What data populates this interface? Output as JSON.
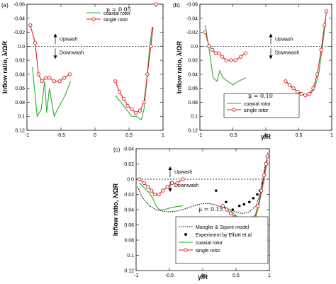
{
  "chart_data": [
    {
      "type": "line",
      "panel_label": "(a)",
      "mu_label": "μ = 0.05",
      "ylabel": "Inflow ratio, λ/ΩR",
      "xlabel": "",
      "xlim": [
        -1,
        1
      ],
      "ylim": [
        -0.06,
        0.12
      ],
      "xticks": [
        "-1",
        "-0.5",
        "0",
        "0.5",
        "1"
      ],
      "xtick_values": [
        -1,
        -0.5,
        0,
        0.5,
        1
      ],
      "yticks": [
        "-0.06",
        "-0.04",
        "-0.02",
        "0.0",
        "0.02",
        "0.04",
        "0.06",
        "0.08",
        "0.1",
        "0.12"
      ],
      "ytick_values": [
        -0.06,
        -0.04,
        -0.02,
        0,
        0.02,
        0.04,
        0.06,
        0.08,
        0.1,
        0.12
      ],
      "legend": {
        "position": "top-right",
        "entries": [
          "coaxial rotor",
          "single rotor"
        ]
      },
      "annotations": {
        "upwash": "Upwash",
        "downwash": "Downwash"
      },
      "series": [
        {
          "name": "coaxial rotor",
          "color": "#2eaa2e",
          "marker": "none",
          "segments": [
            [
              [
                -0.92,
                0.03
              ],
              [
                -0.85,
                0.1
              ],
              [
                -0.79,
                0.09
              ],
              [
                -0.74,
                0.05
              ],
              [
                -0.71,
                0.095
              ],
              [
                -0.67,
                0.06
              ],
              [
                -0.6,
                0.1
              ],
              [
                -0.55,
                0.09
              ],
              [
                -0.44,
                0.07
              ],
              [
                -0.36,
                0.05
              ]
            ],
            [
              [
                0.3,
                0.07
              ],
              [
                0.38,
                0.08
              ],
              [
                0.46,
                0.09
              ],
              [
                0.54,
                0.1
              ],
              [
                0.61,
                0.1
              ],
              [
                0.68,
                0.105
              ],
              [
                0.72,
                0.09
              ],
              [
                0.76,
                0.05
              ],
              [
                0.8,
                0.005
              ],
              [
                0.85,
                -0.035
              ],
              [
                0.89,
                -0.055
              ]
            ]
          ]
        },
        {
          "name": "single rotor",
          "color": "#d82020",
          "marker": "circle",
          "segments": [
            [
              [
                -0.95,
                -0.03
              ],
              [
                -0.88,
                -0.005
              ],
              [
                -0.83,
                0.04
              ],
              [
                -0.78,
                0.05
              ],
              [
                -0.72,
                0.045
              ],
              [
                -0.67,
                0.045
              ],
              [
                -0.6,
                0.05
              ],
              [
                -0.52,
                0.05
              ],
              [
                -0.45,
                0.045
              ],
              [
                -0.37,
                0.04
              ]
            ],
            [
              [
                0.3,
                0.05
              ],
              [
                0.36,
                0.065
              ],
              [
                0.42,
                0.075
              ],
              [
                0.48,
                0.085
              ],
              [
                0.54,
                0.09
              ],
              [
                0.6,
                0.095
              ],
              [
                0.66,
                0.092
              ],
              [
                0.72,
                0.08
              ],
              [
                0.77,
                0.04
              ],
              [
                0.82,
                0.0
              ],
              [
                0.87,
                -0.04
              ],
              [
                0.9,
                -0.06
              ]
            ]
          ]
        }
      ]
    },
    {
      "type": "line",
      "panel_label": "(b)",
      "mu_label": "μ = 0.10",
      "ylabel": "Inflow ratio, λ/ΩR",
      "xlabel": "y/R",
      "xlim": [
        -1,
        1
      ],
      "ylim": [
        -0.06,
        0.12
      ],
      "xticks": [
        "-1",
        "-0.5",
        "0",
        "0.5",
        "1"
      ],
      "xtick_values": [
        -1,
        -0.5,
        0,
        0.5,
        1
      ],
      "yticks": [
        "-0.06",
        "-0.04",
        "-0.02",
        "0.0",
        "0.02",
        "0.04",
        "0.06",
        "0.08",
        "0.1",
        "0.12"
      ],
      "ytick_values": [
        -0.06,
        -0.04,
        -0.02,
        0,
        0.02,
        0.04,
        0.06,
        0.08,
        0.1,
        0.12
      ],
      "legend": {
        "position": "bottom-right",
        "entries": [
          "coaxial rotor",
          "single rotor"
        ]
      },
      "annotations": {
        "upwash": "Upwash",
        "downwash": "Downwash"
      },
      "series": [
        {
          "name": "coaxial rotor",
          "color": "#2eaa2e",
          "marker": "none",
          "segments": [
            [
              [
                -0.92,
                -0.03
              ],
              [
                -0.85,
                0.01
              ],
              [
                -0.8,
                0.045
              ],
              [
                -0.74,
                0.05
              ],
              [
                -0.7,
                0.035
              ],
              [
                -0.65,
                0.045
              ],
              [
                -0.58,
                0.05
              ],
              [
                -0.5,
                0.055
              ],
              [
                -0.42,
                0.05
              ],
              [
                -0.3,
                0.045
              ]
            ],
            [
              [
                0.3,
                0.05
              ],
              [
                0.38,
                0.058
              ],
              [
                0.46,
                0.063
              ],
              [
                0.54,
                0.067
              ],
              [
                0.6,
                0.07
              ],
              [
                0.68,
                0.068
              ],
              [
                0.74,
                0.06
              ],
              [
                0.8,
                0.04
              ],
              [
                0.86,
                0.0
              ],
              [
                0.91,
                -0.04
              ]
            ]
          ]
        },
        {
          "name": "single rotor",
          "color": "#d82020",
          "marker": "circle",
          "segments": [
            [
              [
                -0.92,
                -0.02
              ],
              [
                -0.86,
                0.0
              ],
              [
                -0.81,
                0.005
              ],
              [
                -0.76,
                0.01
              ],
              [
                -0.71,
                0.01
              ],
              [
                -0.66,
                0.015
              ],
              [
                -0.6,
                0.02
              ],
              [
                -0.53,
                0.02
              ],
              [
                -0.46,
                0.02
              ],
              [
                -0.38,
                0.015
              ],
              [
                -0.31,
                0.01
              ]
            ],
            [
              [
                0.3,
                0.05
              ],
              [
                0.36,
                0.055
              ],
              [
                0.42,
                0.06
              ],
              [
                0.48,
                0.065
              ],
              [
                0.54,
                0.068
              ],
              [
                0.6,
                0.07
              ],
              [
                0.66,
                0.068
              ],
              [
                0.72,
                0.06
              ],
              [
                0.78,
                0.04
              ],
              [
                0.84,
                0.005
              ],
              [
                0.89,
                -0.03
              ],
              [
                0.92,
                -0.05
              ]
            ]
          ]
        }
      ]
    },
    {
      "type": "line",
      "panel_label": "(c)",
      "mu_label": "μ = 0.15",
      "ylabel": "Inflow ratio, λ/ΩR",
      "xlabel": "y/R",
      "xlim": [
        -1,
        1
      ],
      "ylim": [
        -0.04,
        0.12
      ],
      "xticks": [
        "-1",
        "-0.5",
        "0",
        "0.5",
        "1"
      ],
      "xtick_values": [
        -1,
        -0.5,
        0,
        0.5,
        1
      ],
      "yticks": [
        "-0.04",
        "-0.02",
        "0.0",
        "0.02",
        "0.04",
        "0.06",
        "0.08",
        "0.1",
        "0.12"
      ],
      "ytick_values": [
        -0.04,
        -0.02,
        0,
        0.02,
        0.04,
        0.06,
        0.08,
        0.1,
        0.12
      ],
      "legend": {
        "position": "bottom-right",
        "entries": [
          "Mangler & Squire model",
          "Experiment by Elliott et al",
          "coaxial rotor",
          "single rotor"
        ]
      },
      "annotations": {
        "upwash": "Upwash",
        "downwash": "Downwash"
      },
      "series": [
        {
          "name": "Mangler & Squire model",
          "color": "#000000",
          "marker": "none",
          "dashed": true,
          "segments": [
            [
              [
                -0.98,
                0.01
              ],
              [
                -0.9,
                0.025
              ],
              [
                -0.8,
                0.035
              ],
              [
                -0.7,
                0.04
              ],
              [
                -0.6,
                0.042
              ],
              [
                -0.5,
                0.043
              ],
              [
                -0.4,
                0.042
              ],
              [
                -0.3,
                0.04
              ],
              [
                -0.2,
                0.037
              ],
              [
                -0.1,
                0.034
              ],
              [
                0.0,
                0.032
              ],
              [
                0.1,
                0.032
              ],
              [
                0.2,
                0.034
              ],
              [
                0.3,
                0.037
              ],
              [
                0.4,
                0.04
              ],
              [
                0.5,
                0.043
              ],
              [
                0.6,
                0.045
              ],
              [
                0.7,
                0.043
              ],
              [
                0.8,
                0.035
              ],
              [
                0.86,
                0.02
              ],
              [
                0.9,
                0.0
              ],
              [
                0.93,
                -0.015
              ],
              [
                0.96,
                -0.025
              ],
              [
                0.98,
                -0.035
              ]
            ]
          ]
        },
        {
          "name": "Experiment by Elliott et al",
          "color": "#000000",
          "marker": "dot",
          "scatter": true,
          "segments": [
            [
              [
                0.2,
                0.015
              ],
              [
                0.35,
                0.03
              ],
              [
                0.45,
                0.04
              ],
              [
                0.55,
                0.035
              ],
              [
                0.62,
                0.033
              ],
              [
                0.7,
                0.03
              ],
              [
                0.76,
                0.025
              ],
              [
                0.82,
                0.02
              ],
              [
                0.86,
                0.015
              ],
              [
                0.9,
                0.005
              ],
              [
                0.93,
                -0.005
              ]
            ]
          ]
        },
        {
          "name": "coaxial rotor",
          "color": "#2eaa2e",
          "marker": "none",
          "segments": [
            [
              [
                -0.95,
                0.005
              ],
              [
                -0.87,
                0.012
              ],
              [
                -0.8,
                0.018
              ],
              [
                -0.75,
                0.025
              ],
              [
                -0.7,
                0.035
              ],
              [
                -0.65,
                0.04
              ],
              [
                -0.58,
                0.04
              ],
              [
                -0.5,
                0.038
              ],
              [
                -0.4,
                0.036
              ],
              [
                -0.3,
                0.035
              ]
            ],
            [
              [
                0.3,
                0.035
              ],
              [
                0.4,
                0.04
              ],
              [
                0.5,
                0.048
              ],
              [
                0.58,
                0.055
              ],
              [
                0.65,
                0.06
              ],
              [
                0.72,
                0.062
              ],
              [
                0.78,
                0.055
              ],
              [
                0.84,
                0.035
              ],
              [
                0.9,
                0.01
              ],
              [
                0.94,
                -0.01
              ],
              [
                0.97,
                -0.025
              ]
            ]
          ]
        },
        {
          "name": "single rotor",
          "color": "#d82020",
          "marker": "circle",
          "segments": [
            [
              [
                -0.95,
                0.0
              ],
              [
                -0.88,
                0.005
              ],
              [
                -0.82,
                0.01
              ],
              [
                -0.77,
                0.015
              ],
              [
                -0.72,
                0.02
              ],
              [
                -0.66,
                0.02
              ],
              [
                -0.6,
                0.015
              ],
              [
                -0.53,
                0.01
              ],
              [
                -0.46,
                0.005
              ],
              [
                -0.38,
                0.005
              ],
              [
                -0.3,
                0.0
              ]
            ],
            [
              [
                0.3,
                0.035
              ],
              [
                0.36,
                0.04
              ],
              [
                0.42,
                0.045
              ],
              [
                0.48,
                0.05
              ],
              [
                0.54,
                0.055
              ],
              [
                0.6,
                0.06
              ],
              [
                0.66,
                0.062
              ],
              [
                0.72,
                0.06
              ],
              [
                0.78,
                0.05
              ],
              [
                0.83,
                0.035
              ],
              [
                0.88,
                0.015
              ],
              [
                0.92,
                -0.005
              ],
              [
                0.95,
                -0.02
              ],
              [
                0.97,
                -0.03
              ]
            ]
          ]
        }
      ]
    }
  ]
}
